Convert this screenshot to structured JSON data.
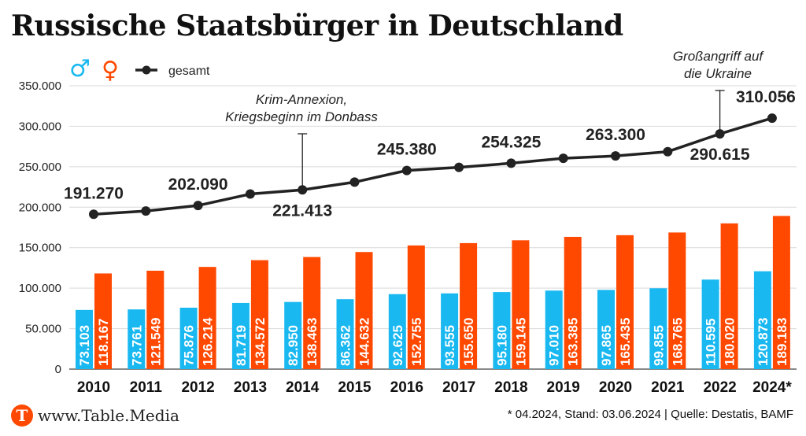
{
  "title": "Russische Staatsbürger in Deutschland",
  "colors": {
    "male": "#1ab8f0",
    "female": "#ff4800",
    "total": "#222222",
    "brand": "#ff4800"
  },
  "legend": {
    "male_symbol": "♂",
    "female_symbol": "♀",
    "total_label": "gesamt"
  },
  "chart_data": {
    "type": "bar",
    "categories": [
      "2010",
      "2011",
      "2012",
      "2013",
      "2014",
      "2015",
      "2016",
      "2017",
      "2018",
      "2019",
      "2020",
      "2021",
      "2022",
      "2024*"
    ],
    "series": [
      {
        "values": [
          73103,
          73761,
          75876,
          81719,
          82950,
          86362,
          92625,
          93555,
          95180,
          97010,
          97865,
          99855,
          110595,
          120873
        ],
        "labels": [
          "73.103",
          "73.761",
          "75.876",
          "81.719",
          "82.950",
          "86.362",
          "92.625",
          "93.555",
          "95.180",
          "97.010",
          "97.865",
          "99.855",
          "110.595",
          "120.873"
        ]
      },
      {
        "values": [
          118167,
          121549,
          126214,
          134572,
          138463,
          144632,
          152755,
          155650,
          159145,
          163385,
          165435,
          168765,
          180020,
          189183
        ],
        "labels": [
          "118.167",
          "121.549",
          "126.214",
          "134.572",
          "138.463",
          "144.632",
          "152.755",
          "155.650",
          "159.145",
          "163.385",
          "165.435",
          "168.765",
          "180.020",
          "189.183"
        ]
      }
    ],
    "line": {
      "name": "gesamt",
      "values": [
        191270,
        195310,
        202090,
        216291,
        221413,
        230994,
        245380,
        249205,
        254325,
        260395,
        263300,
        268620,
        290615,
        310056
      ]
    },
    "line_labels": [
      {
        "index": 0,
        "text": "191.270",
        "pos": "above"
      },
      {
        "index": 2,
        "text": "202.090",
        "pos": "above"
      },
      {
        "index": 4,
        "text": "221.413",
        "pos": "below"
      },
      {
        "index": 6,
        "text": "245.380",
        "pos": "above"
      },
      {
        "index": 8,
        "text": "254.325",
        "pos": "above"
      },
      {
        "index": 10,
        "text": "263.300",
        "pos": "above"
      },
      {
        "index": 12,
        "text": "290.615",
        "pos": "below"
      },
      {
        "index": 13,
        "text": "310.056",
        "pos": "above"
      }
    ],
    "y_ticks": [
      0,
      50000,
      100000,
      150000,
      200000,
      250000,
      300000,
      350000
    ],
    "y_tick_labels": [
      "0",
      "50.000",
      "100.000",
      "150.000",
      "200.000",
      "250.000",
      "300.000",
      "350.000"
    ],
    "ylim": [
      0,
      350000
    ],
    "grid": true,
    "legend_position": "top-left",
    "annotations": [
      {
        "index": 4,
        "lines": [
          "Krim-Annexion,",
          "Kriegsbeginn im Donbass"
        ]
      },
      {
        "index": 12,
        "lines": [
          "Großangriff auf",
          "die Ukraine"
        ]
      }
    ]
  },
  "footer": {
    "logo_letter": "T",
    "site": "www.Table.Media",
    "note": "* 04.2024, Stand: 03.06.2024 | Quelle: Destatis, BAMF"
  }
}
